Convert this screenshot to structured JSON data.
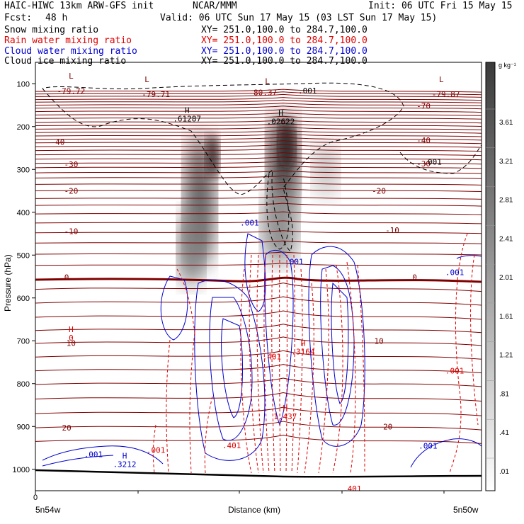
{
  "header": {
    "model": "HAIC-HIWC 13km ARW-GFS init",
    "org": "NCAR/MMM",
    "init": "Init: 06 UTC Fri 15 May 15",
    "fcst_label": "Fcst:",
    "fcst_value": "48 h",
    "valid": "Valid: 06 UTC Sun 17 May 15 (03 LST Sun 17 May 15)"
  },
  "fields": [
    {
      "name": "Snow mixing ratio",
      "xy": "XY= 251.0,100.0 to 284.7,100.0",
      "color": "#000000"
    },
    {
      "name": "Rain water mixing ratio",
      "xy": "XY= 251.0,100.0 to 284.7,100.0",
      "color": "#e00000"
    },
    {
      "name": "Cloud water mixing ratio",
      "xy": "XY= 251.0,100.0 to 284.7,100.0",
      "color": "#0000d0"
    },
    {
      "name": "Cloud ice mixing ratio",
      "xy": "XY= 251.0,100.0 to 284.7,100.0",
      "color": "#000000"
    }
  ],
  "chart_data": {
    "type": "heatmap",
    "xlabel": "Distance (km)",
    "ylabel": "Pressure (hPa)",
    "x_tick_labels": [
      {
        "text": "0",
        "left": "5n54w",
        "right": "5n50w"
      }
    ],
    "y_ticks": [
      100,
      200,
      300,
      400,
      500,
      600,
      700,
      800,
      900,
      1000
    ],
    "ylim": [
      1050,
      50
    ],
    "colorbar": {
      "unit": "g kg⁻¹",
      "levels": [
        "3.61",
        "3.21",
        "2.81",
        "2.41",
        "2.01",
        "1.61",
        "1.21",
        ".81",
        ".41",
        ".01"
      ]
    },
    "temperature_contour_labels": [
      {
        "text": "-79.72",
        "x": 0.08,
        "p": 117
      },
      {
        "text": "-79.71",
        "x": 0.27,
        "p": 124
      },
      {
        "text": "-80.37",
        "x": 0.51,
        "p": 120
      },
      {
        "text": "-79.87",
        "x": 0.92,
        "p": 124
      },
      {
        "text": "-70",
        "x": 0.87,
        "p": 152
      },
      {
        "text": "-40",
        "x": 0.05,
        "p": 236
      },
      {
        "text": "-40",
        "x": 0.87,
        "p": 232
      },
      {
        "text": "-30",
        "x": 0.08,
        "p": 288
      },
      {
        "text": "-30",
        "x": 0.87,
        "p": 286
      },
      {
        "text": "-20",
        "x": 0.08,
        "p": 350
      },
      {
        "text": "-20",
        "x": 0.77,
        "p": 350
      },
      {
        "text": "-10",
        "x": 0.08,
        "p": 444
      },
      {
        "text": "-10",
        "x": 0.8,
        "p": 442
      },
      {
        "text": "0",
        "x": 0.07,
        "p": 552
      },
      {
        "text": "0",
        "x": 0.85,
        "p": 552
      },
      {
        "text": "10",
        "x": 0.08,
        "p": 705
      },
      {
        "text": "10",
        "x": 0.77,
        "p": 700
      },
      {
        "text": "20",
        "x": 0.07,
        "p": 903
      },
      {
        "text": "20",
        "x": 0.79,
        "p": 900
      }
    ],
    "extrema_markers": [
      {
        "label": "L",
        "x": 0.08,
        "p": 88
      },
      {
        "label": "L",
        "x": 0.25,
        "p": 96
      },
      {
        "label": "L",
        "x": 0.52,
        "p": 100
      },
      {
        "label": "L",
        "x": 0.91,
        "p": 96
      },
      {
        "label": "H",
        "value": ".61287",
        "x": 0.34,
        "p": 168
      },
      {
        "label": "H",
        "value": ".02622",
        "x": 0.55,
        "p": 175
      },
      {
        "label": "H",
        "value": "0",
        "x": 0.08,
        "p": 680
      },
      {
        "label": "H",
        "value": ".3164",
        "x": 0.6,
        "p": 712
      },
      {
        "label": "H",
        "value": "1.437",
        "x": 0.56,
        "p": 863
      },
      {
        "label": "H",
        "value": ".3212",
        "x": 0.2,
        "p": 975
      }
    ],
    "mixing_ratio_labels": [
      {
        "text": ".001",
        "x": 0.61,
        "p": 116,
        "series": "ice"
      },
      {
        "text": ".001",
        "x": 0.89,
        "p": 282,
        "series": "ice"
      },
      {
        "text": ".001",
        "x": 0.48,
        "p": 424,
        "series": "cloud"
      },
      {
        "text": ".001",
        "x": 0.58,
        "p": 515,
        "series": "cloud"
      },
      {
        "text": ".001",
        "x": 0.94,
        "p": 540,
        "series": "cloud"
      },
      {
        "text": ".001",
        "x": 0.94,
        "p": 770,
        "series": "rain"
      },
      {
        "text": ".401",
        "x": 0.53,
        "p": 737,
        "series": "rain"
      },
      {
        "text": ".001",
        "x": 0.27,
        "p": 955,
        "series": "rain"
      },
      {
        "text": ".401",
        "x": 0.44,
        "p": 944,
        "series": "rain"
      },
      {
        "text": ".001",
        "x": 0.13,
        "p": 965,
        "series": "cloud"
      },
      {
        "text": ".001",
        "x": 0.88,
        "p": 945,
        "series": "cloud"
      },
      {
        "text": ".401",
        "x": 0.71,
        "p": 1045,
        "series": "rain"
      }
    ]
  }
}
